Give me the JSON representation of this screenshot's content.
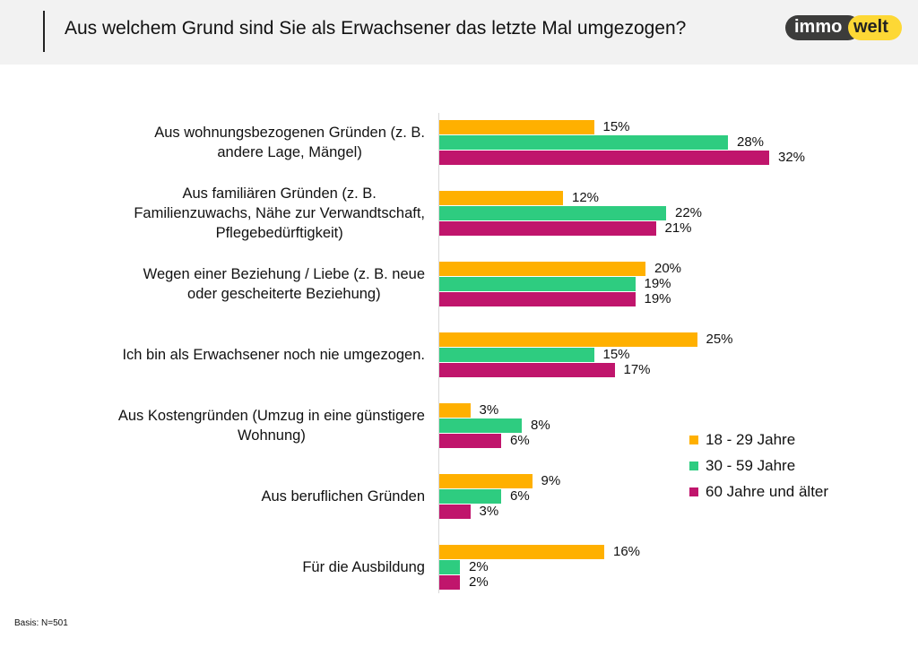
{
  "header": {
    "title": "Aus welchem Grund sind Sie als Erwachsener das letzte Mal umgezogen?"
  },
  "logo": {
    "part1": "immo",
    "part2": "welt"
  },
  "chart_data": {
    "type": "bar",
    "orientation": "horizontal",
    "title": "Aus welchem Grund sind Sie als Erwachsener das letzte Mal umgezogen?",
    "unit": "%",
    "categories": [
      [
        "Aus wohnungsbezogenen Gründen (z. B.",
        "andere Lage, Mängel)"
      ],
      [
        "Aus familiären Gründen (z. B.",
        "Familienzuwachs, Nähe zur Verwandtschaft,",
        "Pflegebedürftigkeit)"
      ],
      [
        "Wegen einer Beziehung / Liebe (z. B. neue",
        "oder gescheiterte Beziehung)"
      ],
      [
        "Ich bin als Erwachsener noch nie umgezogen."
      ],
      [
        "Aus Kostengründen (Umzug in eine günstigere",
        "Wohnung)"
      ],
      [
        "Aus beruflichen Gründen"
      ],
      [
        "Für die Ausbildung"
      ]
    ],
    "series": [
      {
        "name": "18 - 29 Jahre",
        "color": "#ffb000",
        "values": [
          15,
          12,
          20,
          25,
          3,
          9,
          16
        ]
      },
      {
        "name": "30 - 59 Jahre",
        "color": "#2ecc80",
        "values": [
          28,
          22,
          19,
          15,
          8,
          6,
          2
        ]
      },
      {
        "name": "60 Jahre und älter",
        "color": "#c0156c",
        "values": [
          32,
          21,
          19,
          17,
          6,
          3,
          2
        ]
      }
    ],
    "legend_position": "right"
  },
  "footer": {
    "basis": "Basis: N=501"
  }
}
